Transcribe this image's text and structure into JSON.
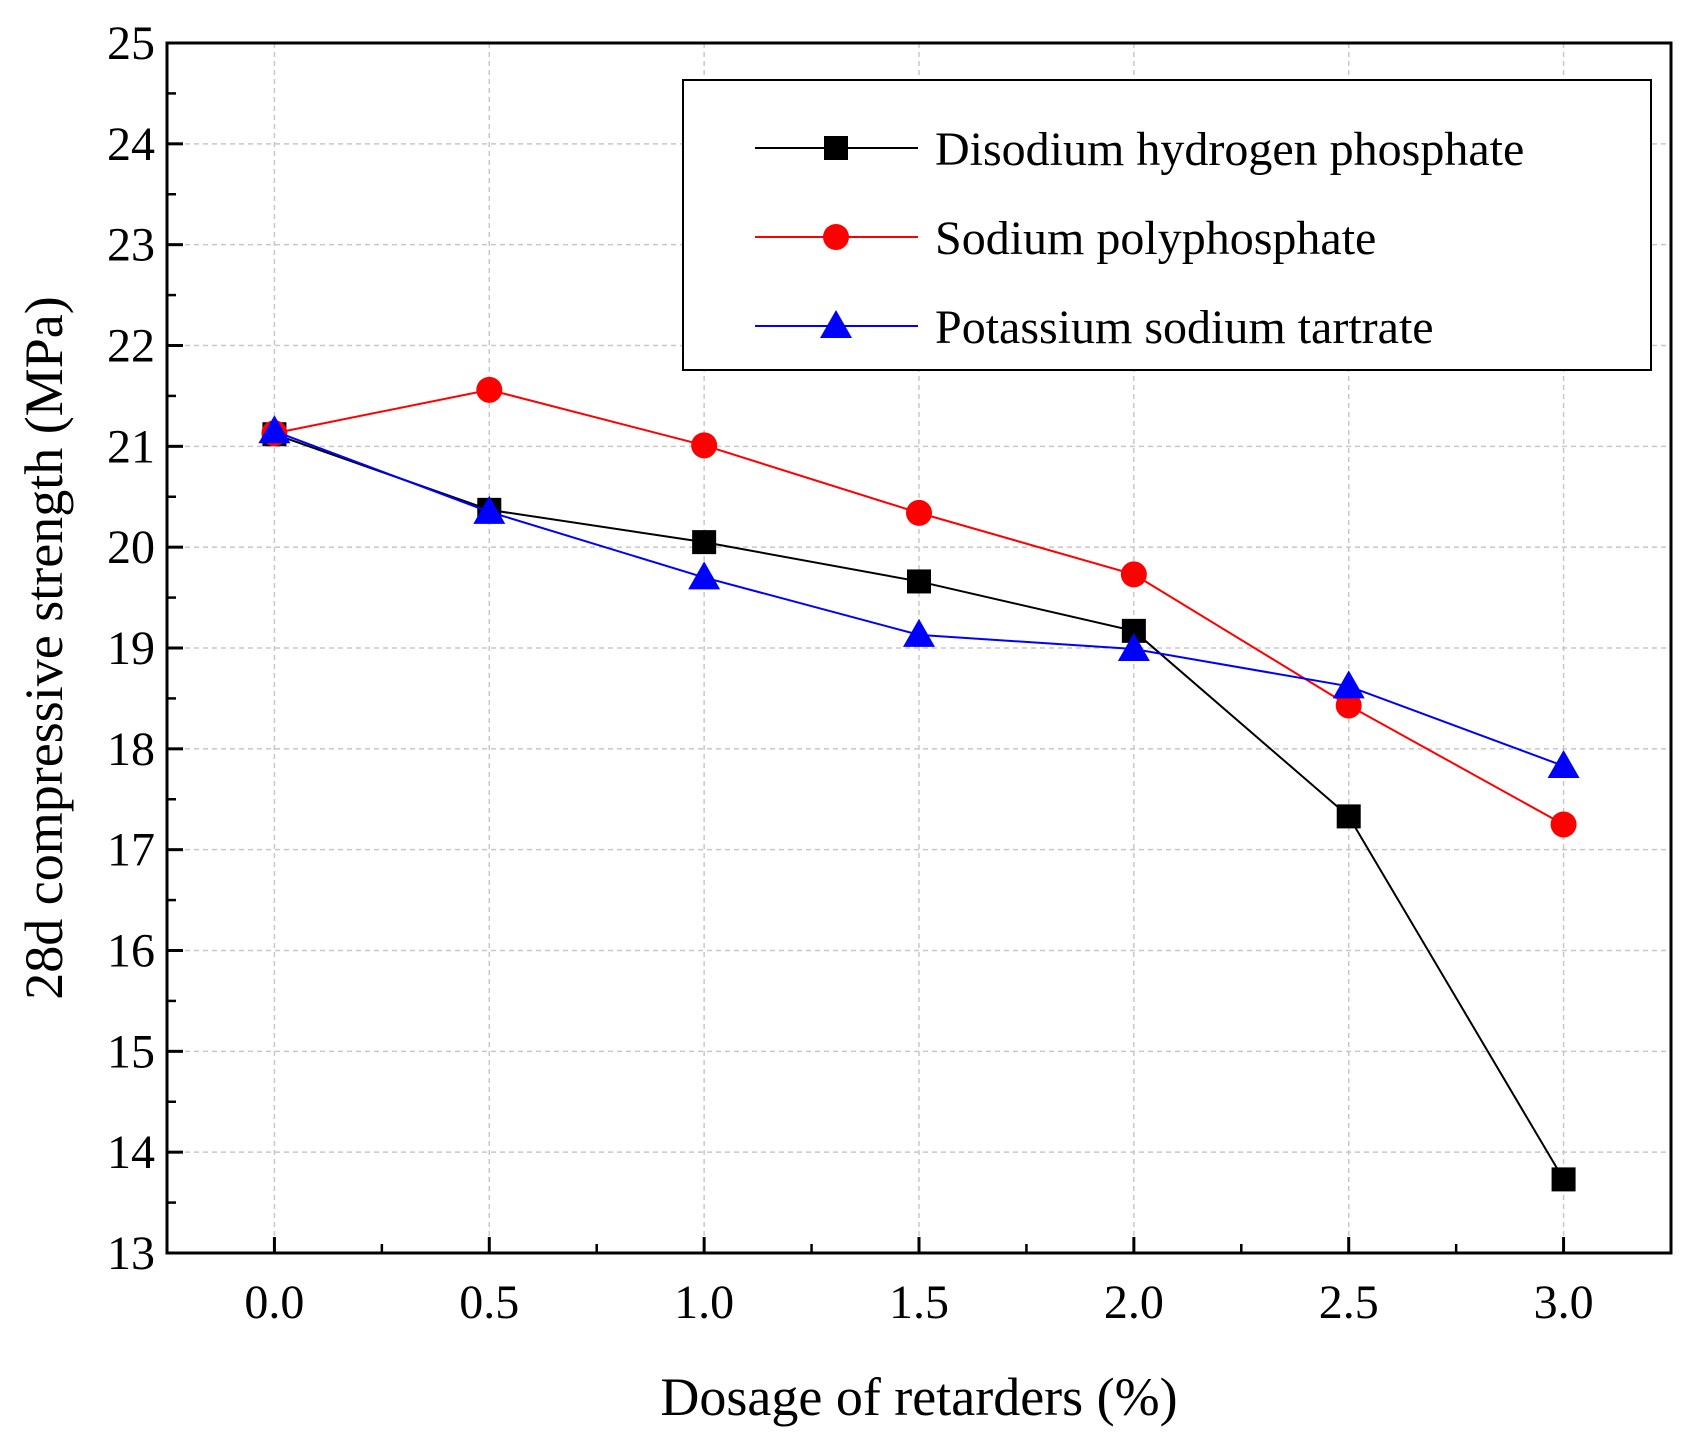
{
  "chart_data": {
    "type": "line",
    "xlabel": "Dosage of  retarders (%)",
    "ylabel": "28d compressive strength (MPa)",
    "xlim": [
      -0.25,
      3.25
    ],
    "ylim": [
      13,
      25
    ],
    "xticks": [
      0.0,
      0.5,
      1.0,
      1.5,
      2.0,
      2.5,
      3.0
    ],
    "xtick_labels": [
      "0.0",
      "0.5",
      "1.0",
      "1.5",
      "2.0",
      "2.5",
      "3.0"
    ],
    "yticks": [
      13,
      14,
      15,
      16,
      17,
      18,
      19,
      20,
      21,
      22,
      23,
      24,
      25
    ],
    "ytick_labels": [
      "13",
      "14",
      "15",
      "16",
      "17",
      "18",
      "19",
      "20",
      "21",
      "22",
      "23",
      "24",
      "25"
    ],
    "grid": true,
    "legend_position": "top-right",
    "x": [
      0.0,
      0.5,
      1.0,
      1.5,
      2.0,
      2.5,
      3.0
    ],
    "series": [
      {
        "name": "Disodium hydrogen phosphate",
        "color": "#000000",
        "marker": "square",
        "values": [
          21.12,
          20.37,
          20.05,
          19.66,
          19.17,
          17.33,
          13.73
        ]
      },
      {
        "name": "Sodium polyphosphate",
        "color": "#ff0000",
        "marker": "circle",
        "values": [
          21.13,
          21.56,
          21.01,
          20.34,
          19.73,
          18.43,
          17.25
        ]
      },
      {
        "name": "Potassium sodium tartrate",
        "color": "#0000ff",
        "marker": "triangle",
        "values": [
          21.15,
          20.35,
          19.7,
          19.13,
          18.99,
          18.62,
          17.83
        ]
      }
    ]
  }
}
